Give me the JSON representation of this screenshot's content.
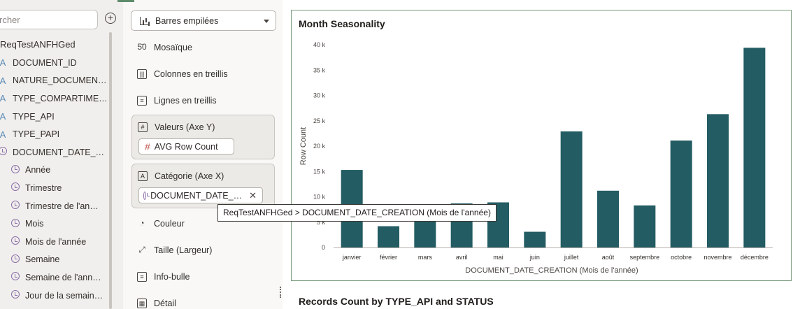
{
  "search": {
    "placeholder": "rcher"
  },
  "data_panel": {
    "root": "ReqTestANFHGed",
    "items": [
      {
        "icon": "A",
        "label": "DOCUMENT_ID",
        "level": 0,
        "kind": "text"
      },
      {
        "icon": "A",
        "label": "NATURE_DOCUMEN…",
        "level": 0,
        "kind": "text"
      },
      {
        "icon": "A",
        "label": "TYPE_COMPARTIME…",
        "level": 0,
        "kind": "text"
      },
      {
        "icon": "A",
        "label": "TYPE_API",
        "level": 0,
        "kind": "text"
      },
      {
        "icon": "A",
        "label": "TYPE_PAPI",
        "level": 0,
        "kind": "text"
      },
      {
        "icon": "clock",
        "label": "DOCUMENT_DATE_…",
        "level": 0,
        "kind": "time"
      },
      {
        "icon": "clock",
        "label": "Année",
        "level": 1,
        "kind": "time"
      },
      {
        "icon": "clock",
        "label": "Trimestre",
        "level": 1,
        "kind": "time"
      },
      {
        "icon": "clock",
        "label": "Trimestre de l'an…",
        "level": 1,
        "kind": "time"
      },
      {
        "icon": "clock",
        "label": "Mois",
        "level": 1,
        "kind": "time"
      },
      {
        "icon": "clock",
        "label": "Mois de l'année",
        "level": 1,
        "kind": "time"
      },
      {
        "icon": "clock",
        "label": "Semaine",
        "level": 1,
        "kind": "time"
      },
      {
        "icon": "clock",
        "label": "Semaine de l'ann…",
        "level": 1,
        "kind": "time"
      },
      {
        "icon": "clock",
        "label": "Jour de la semain…",
        "level": 1,
        "kind": "time"
      }
    ]
  },
  "grammar": {
    "chart_type": "Barres empilées",
    "rows": {
      "mosaique": "Mosaïque",
      "colonnes": "Colonnes en treillis",
      "lignes": "Lignes en treillis",
      "couleur": "Couleur",
      "taille": "Taille (Largeur)",
      "infobulle": "Info-bulle",
      "detail": "Détail"
    },
    "values_zone": {
      "label": "Valeurs (Axe Y)",
      "pill": "AVG Row Count"
    },
    "category_zone": {
      "label": "Catégorie (Axe X)",
      "pill": "DOCUMENT_DATE_…"
    }
  },
  "tooltip": "ReqTestANFHGed > DOCUMENT_DATE_CREATION (Mois de l'année)",
  "card2_title": "Records Count by TYPE_API and STATUS",
  "colors": {
    "bar": "#235c63",
    "frame": "#7a9a7e"
  },
  "chart_data": {
    "type": "bar",
    "title": "Month Seasonality",
    "xlabel": "DOCUMENT_DATE_CREATION (Mois de l'année)",
    "ylabel": "Row Count",
    "categories": [
      "janvier",
      "février",
      "mars",
      "avril",
      "mai",
      "juin",
      "juillet",
      "août",
      "septembre",
      "octobre",
      "novembre",
      "décembre"
    ],
    "values": [
      15300,
      4200,
      5600,
      8700,
      8900,
      3100,
      22900,
      11200,
      8300,
      21100,
      26300,
      39400
    ],
    "yticks": [
      "0",
      "5 k",
      "10 k",
      "15 k",
      "20 k",
      "25 k",
      "30 k",
      "35 k",
      "40 k"
    ],
    "ylim": [
      0,
      40000
    ],
    "grid": false
  }
}
